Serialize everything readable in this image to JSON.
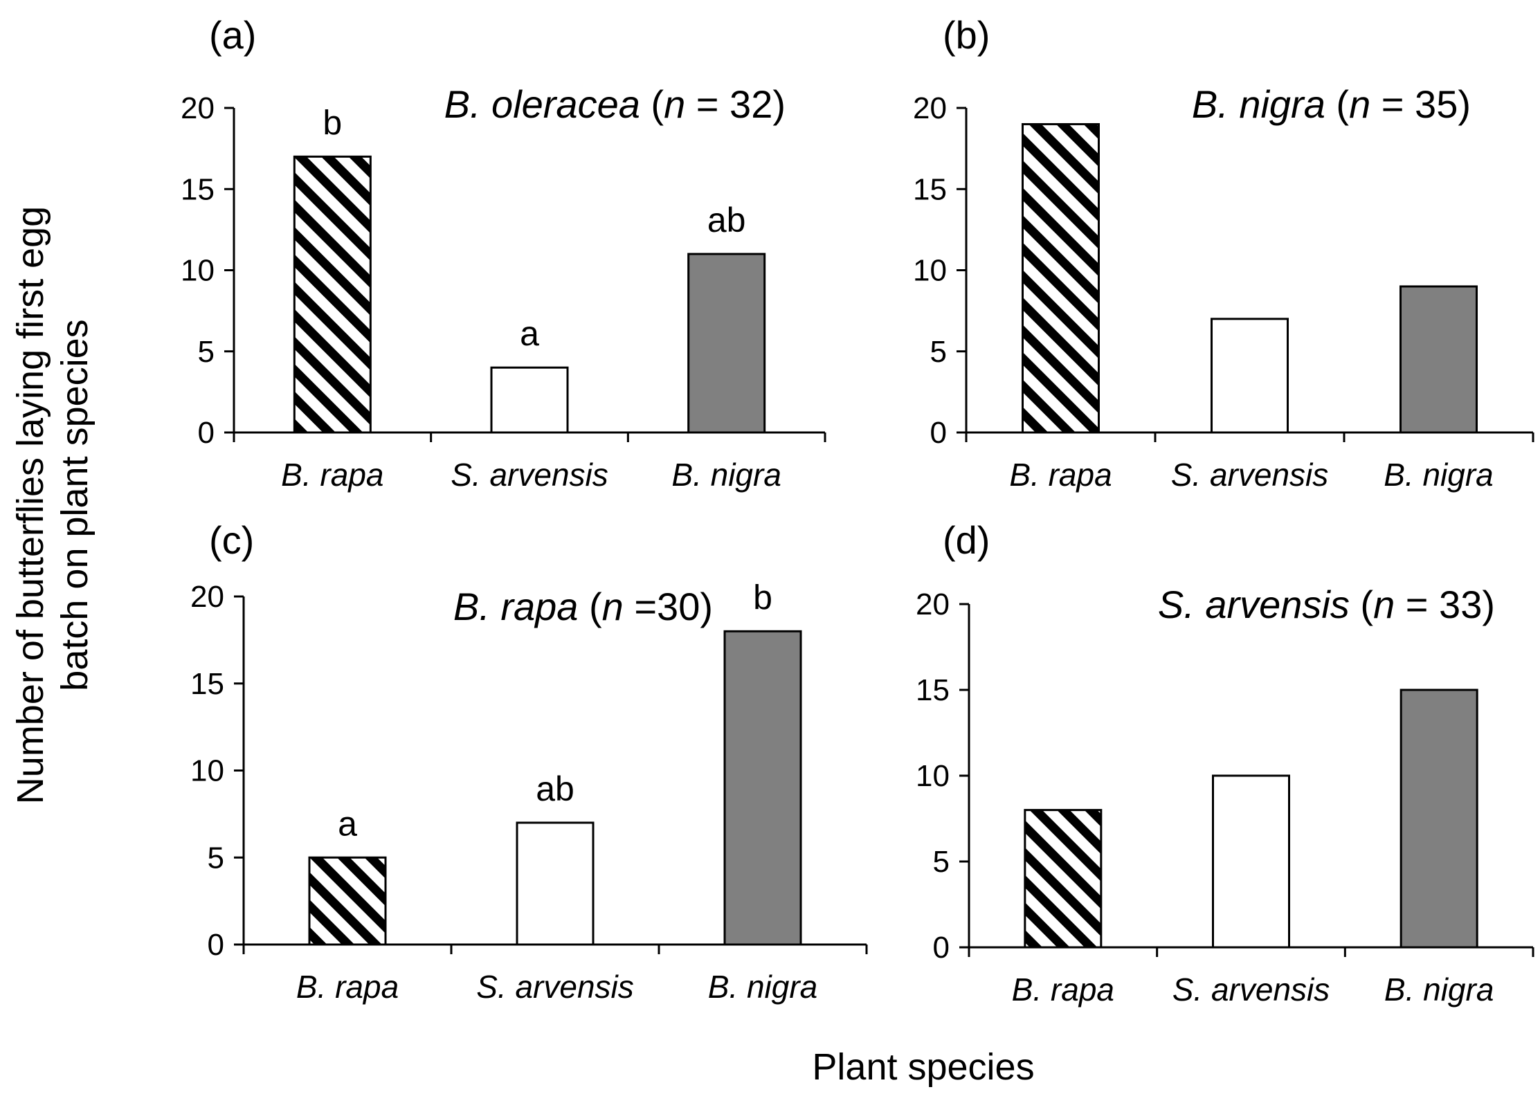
{
  "figure": {
    "y_axis_title_line1": "Number of butterflies laying first egg",
    "y_axis_title_line2": "batch on plant species",
    "x_axis_title": "Plant species"
  },
  "colors": {
    "axis": "#000000",
    "bar_outline": "#000000",
    "stripe_dark": "#000000",
    "stripe_light": "#ffffff",
    "open_fill": "#ffffff",
    "grey_fill": "#808080"
  },
  "chart_data": [
    {
      "type": "bar",
      "panel_label": "(a)",
      "title_species": "B. oleracea",
      "title_n": "(n = 32)",
      "categories": [
        "B. rapa",
        "S. arvensis",
        "B. nigra"
      ],
      "values": [
        17,
        4,
        11
      ],
      "letters": [
        "b",
        "a",
        "ab"
      ],
      "fills": [
        "striped",
        "open",
        "grey"
      ],
      "ylim": [
        0,
        20
      ],
      "yticks": [
        0,
        5,
        10,
        15,
        20
      ],
      "xlabel": "",
      "ylabel": ""
    },
    {
      "type": "bar",
      "panel_label": "(b)",
      "title_species": "B. nigra",
      "title_n": "(n = 35)",
      "categories": [
        "B. rapa",
        "S. arvensis",
        "B. nigra"
      ],
      "values": [
        19,
        7,
        9
      ],
      "letters": [
        "",
        "",
        ""
      ],
      "fills": [
        "striped",
        "open",
        "grey"
      ],
      "ylim": [
        0,
        20
      ],
      "yticks": [
        0,
        5,
        10,
        15,
        20
      ],
      "xlabel": "",
      "ylabel": ""
    },
    {
      "type": "bar",
      "panel_label": "(c)",
      "title_species": "B. rapa",
      "title_n": "(n =30)",
      "categories": [
        "B. rapa",
        "S. arvensis",
        "B. nigra"
      ],
      "values": [
        5,
        7,
        18
      ],
      "letters": [
        "a",
        "ab",
        "b"
      ],
      "fills": [
        "striped",
        "open",
        "grey"
      ],
      "ylim": [
        0,
        20
      ],
      "yticks": [
        0,
        5,
        10,
        15,
        20
      ],
      "xlabel": "",
      "ylabel": ""
    },
    {
      "type": "bar",
      "panel_label": "(d)",
      "title_species": "S. arvensis",
      "title_n": "(n = 33)",
      "categories": [
        "B. rapa",
        "S. arvensis",
        "B. nigra"
      ],
      "values": [
        8,
        10,
        15
      ],
      "letters": [
        "",
        "",
        ""
      ],
      "fills": [
        "striped",
        "open",
        "grey"
      ],
      "ylim": [
        0,
        20
      ],
      "yticks": [
        0,
        5,
        10,
        15,
        20
      ],
      "xlabel": "",
      "ylabel": ""
    }
  ]
}
